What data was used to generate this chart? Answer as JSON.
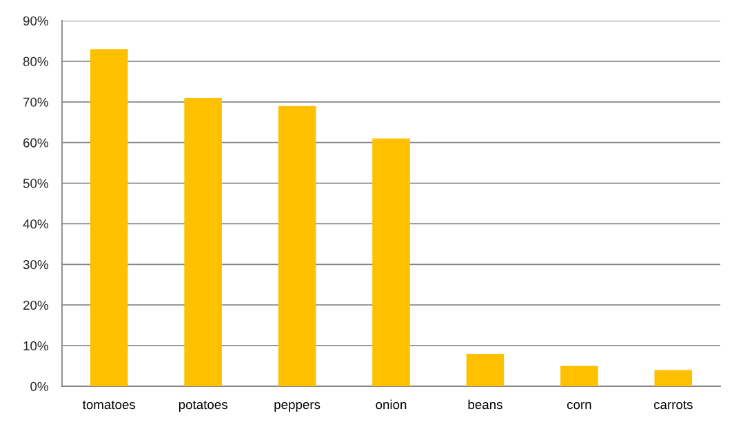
{
  "chart_data": {
    "type": "bar",
    "categories": [
      "tomatoes",
      "potatoes",
      "peppers",
      "onion",
      "beans",
      "corn",
      "carrots"
    ],
    "values": [
      83,
      71,
      69,
      61,
      8,
      5,
      4
    ],
    "color": "#ffc000",
    "ylim": [
      0,
      90
    ],
    "yticks": [
      {
        "value": 0,
        "label": "0%"
      },
      {
        "value": 10,
        "label": "10%"
      },
      {
        "value": 20,
        "label": "20%"
      },
      {
        "value": 30,
        "label": "30%"
      },
      {
        "value": 40,
        "label": "40%"
      },
      {
        "value": 50,
        "label": "50%"
      },
      {
        "value": 60,
        "label": "60%"
      },
      {
        "value": 70,
        "label": "70%"
      },
      {
        "value": 80,
        "label": "80%"
      },
      {
        "value": 90,
        "label": "90%"
      }
    ],
    "grid": "y"
  }
}
